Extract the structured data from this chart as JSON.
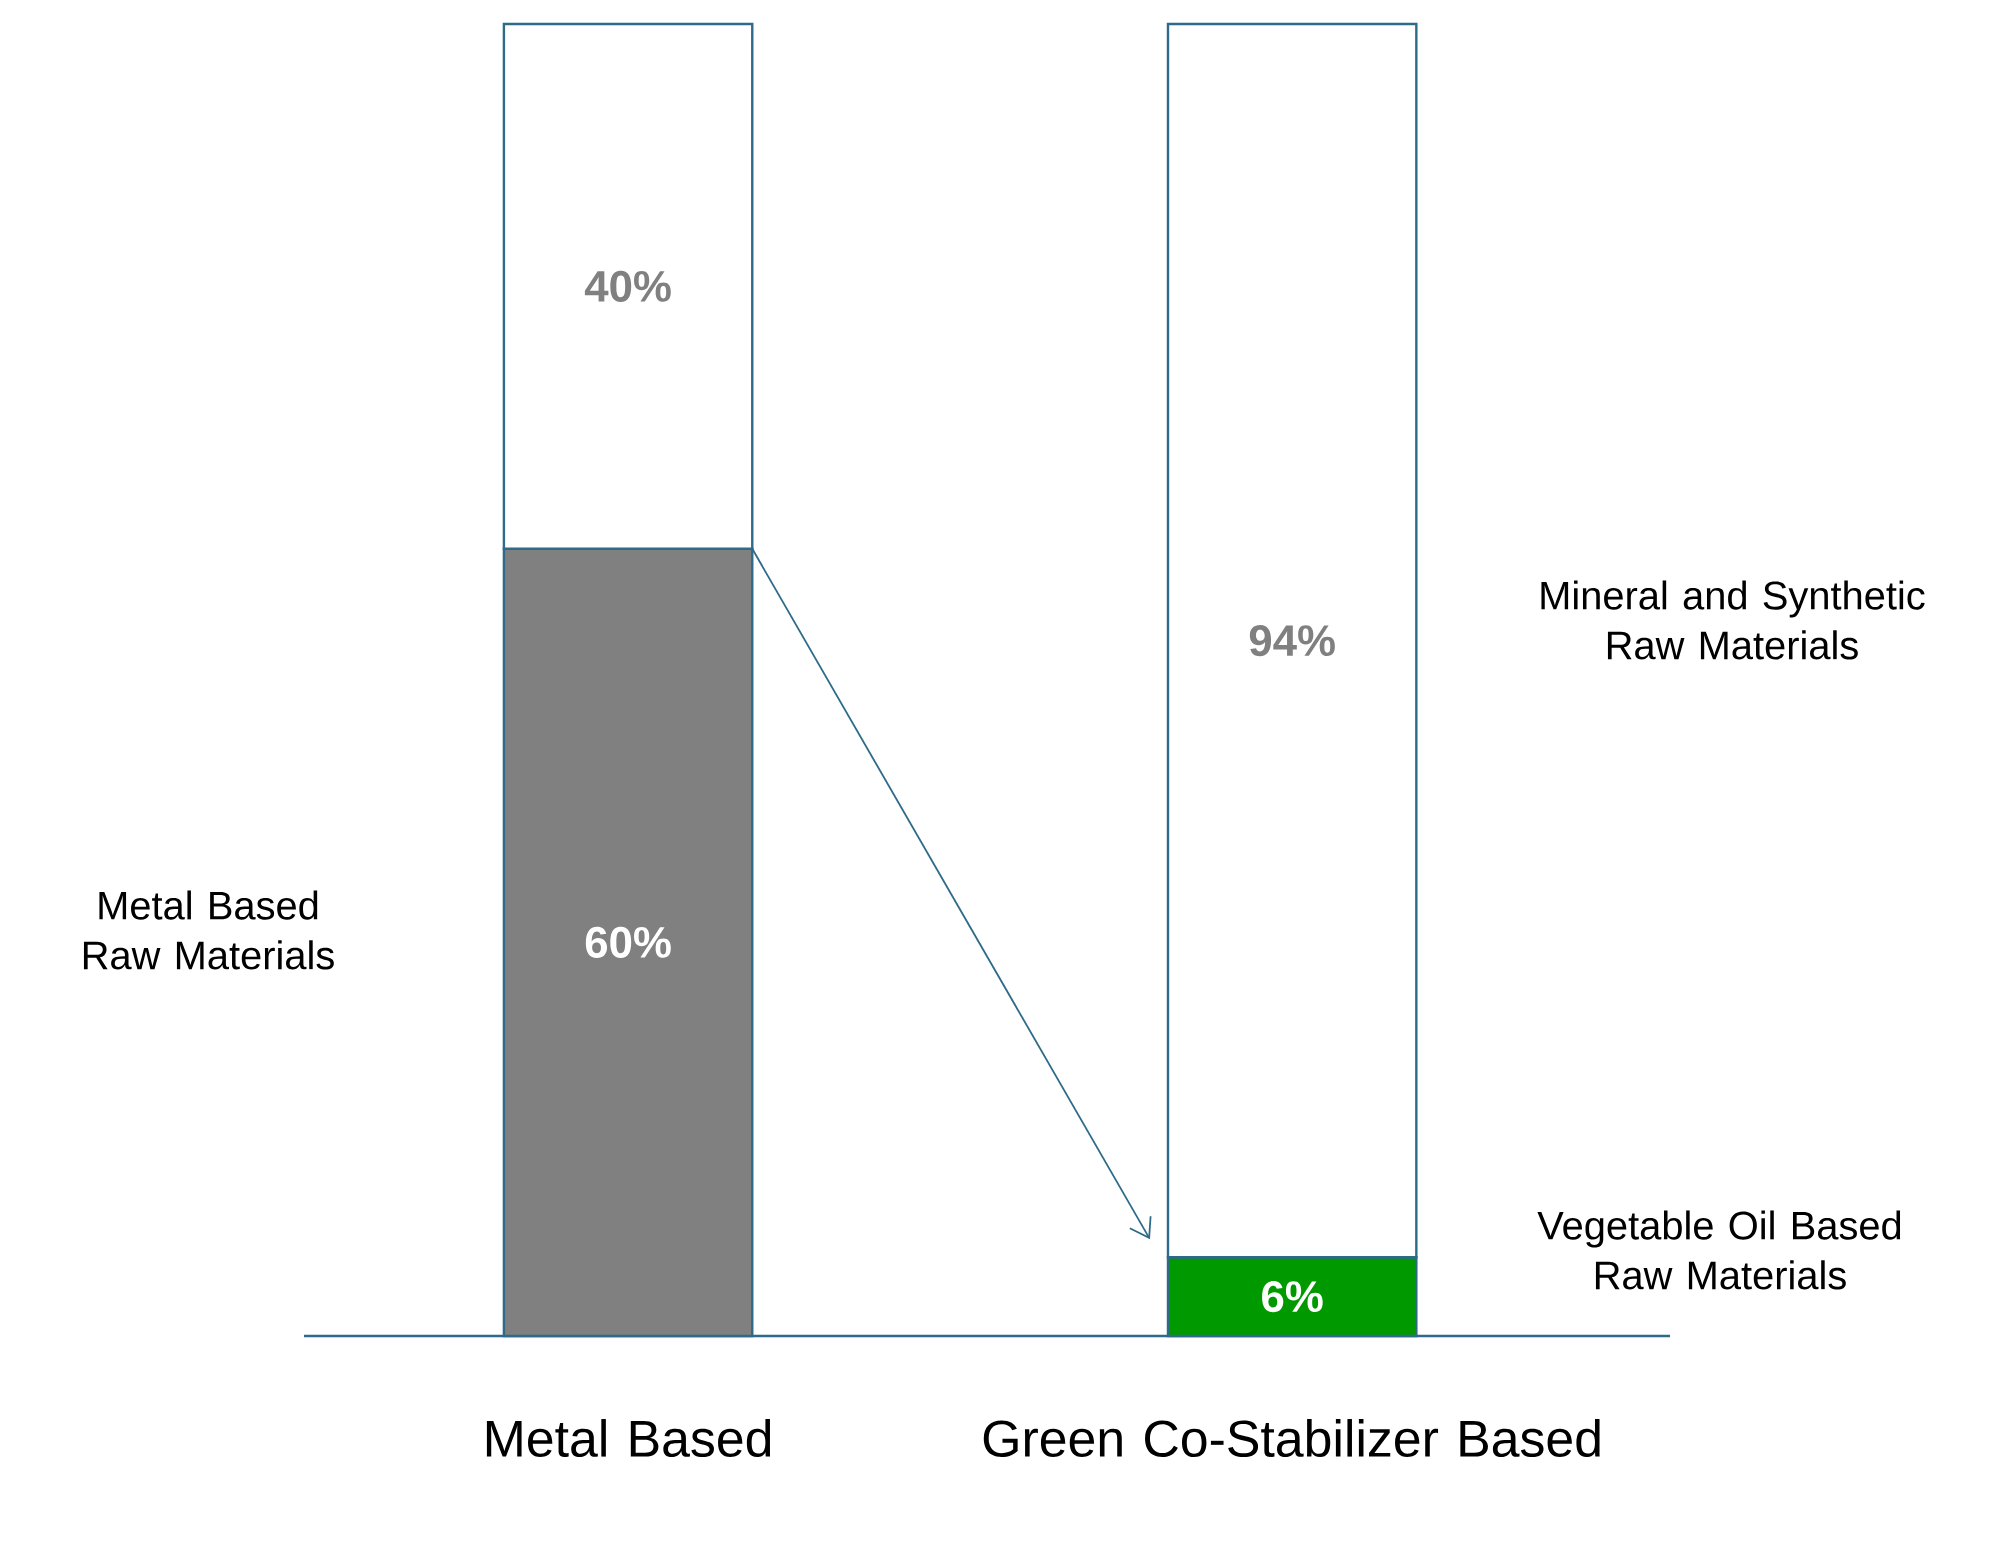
{
  "chart_data": {
    "type": "bar",
    "stacked": true,
    "categories": [
      "Metal Based",
      "Green Co-Stabilizer Based"
    ],
    "series": [
      {
        "colors": [
          "#808080",
          "#009900"
        ],
        "values": [
          60,
          6
        ],
        "value_labels": [
          "60%",
          "6%"
        ]
      },
      {
        "color": "#ffffff",
        "values": [
          40,
          94
        ],
        "value_labels": [
          "40%",
          "94%"
        ]
      }
    ],
    "annotations": [
      "Metal Based Raw Materials",
      "Mineral and Synthetic Raw Materials",
      "Vegetable Oil Based Raw Materials"
    ]
  }
}
